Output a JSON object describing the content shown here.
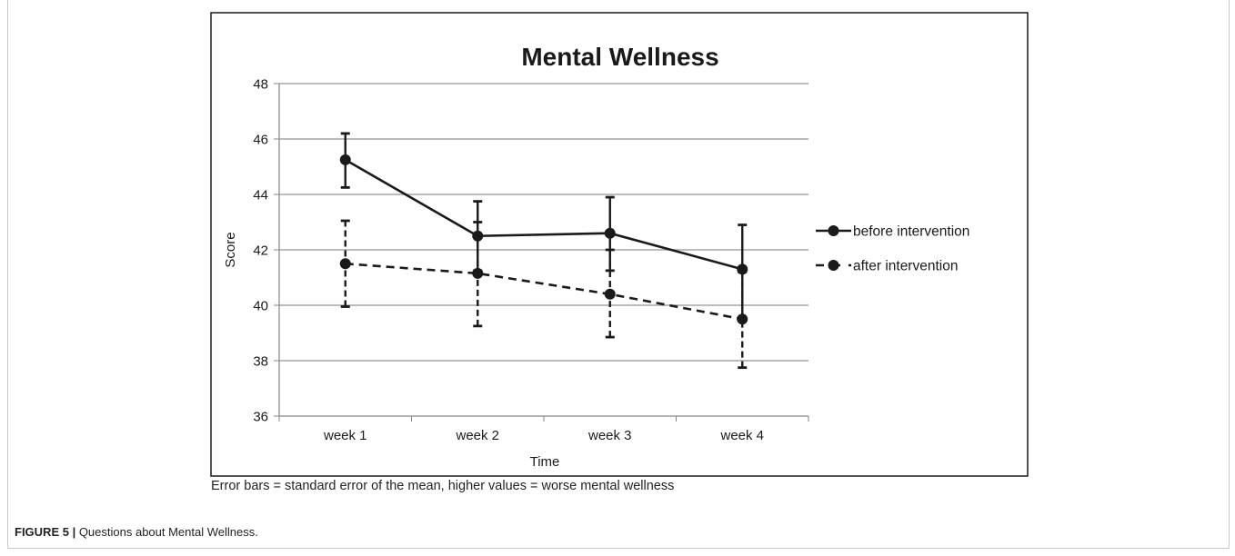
{
  "chart_data": {
    "type": "line",
    "title": "Mental Wellness",
    "xlabel": "Time",
    "ylabel": "Score",
    "categories": [
      "week 1",
      "week 2",
      "week 3",
      "week 4"
    ],
    "y_ticks": [
      "36",
      "38",
      "40",
      "42",
      "44",
      "46",
      "48"
    ],
    "ylim": [
      36,
      48
    ],
    "grid": true,
    "legend_position": "right",
    "error_bars": "standard error of the mean",
    "series": [
      {
        "name": "before intervention",
        "line_style": "solid",
        "values": [
          45.25,
          42.5,
          42.6,
          41.3
        ],
        "error_low": [
          44.25,
          41.25,
          41.25,
          39.5
        ],
        "error_high": [
          46.2,
          43.75,
          43.9,
          42.9
        ]
      },
      {
        "name": "after intervention",
        "line_style": "dashed",
        "values": [
          41.5,
          41.15,
          40.4,
          39.5
        ],
        "error_low": [
          39.95,
          39.25,
          38.85,
          37.75
        ],
        "error_high": [
          43.05,
          43.0,
          42.0,
          41.2
        ]
      }
    ],
    "colors": {
      "series": "#1a1a1a",
      "grid": "#a6a6a6",
      "axis": "#868686"
    }
  },
  "footnote": "Error bars = standard error of the mean, higher values = worse mental wellness",
  "caption": {
    "label": "FIGURE 5 |",
    "text": " Questions about Mental Wellness."
  }
}
